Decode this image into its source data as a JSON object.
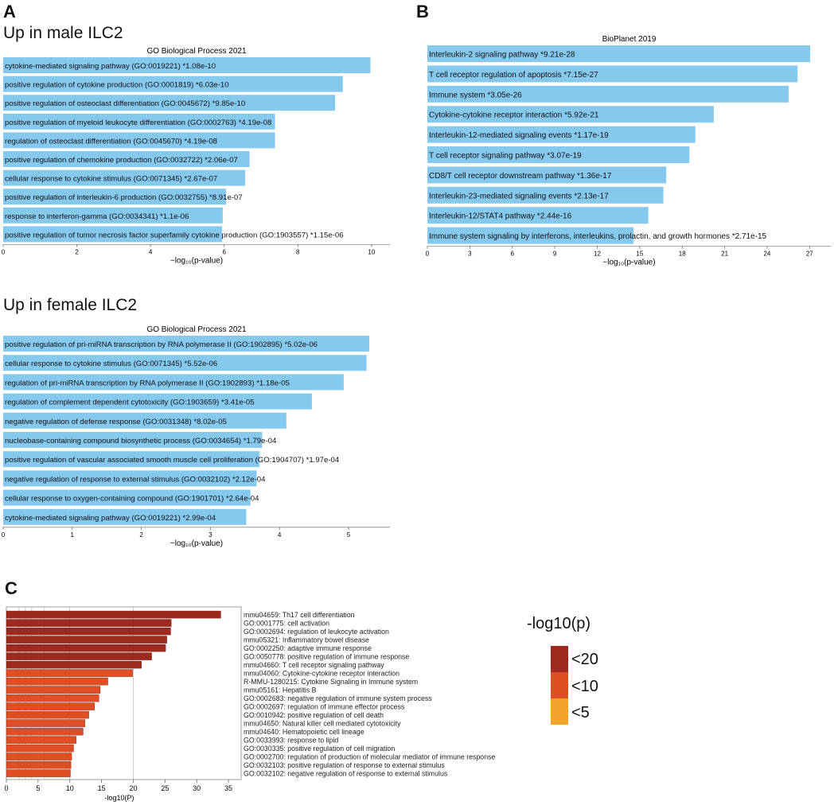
{
  "panels": {
    "a": "A",
    "b": "B",
    "c": "C"
  },
  "colors": {
    "bar_blue": "#85c9ef",
    "c20": "#9e2a1f",
    "c10": "#e04f24",
    "c5": "#f2a32a"
  },
  "chart_data": [
    {
      "id": "male",
      "type": "bar",
      "orientation": "horizontal",
      "subtitle": "Up in male ILC2",
      "title": "GO Biological Process 2021",
      "xlabel": "−log₁₀(p-value)",
      "xlim": [
        0,
        10.5
      ],
      "xticks": [
        0,
        2,
        4,
        6,
        8,
        10
      ],
      "categories": [
        "cytokine-mediated signaling pathway (GO:0019221)",
        "positive regulation of cytokine production (GO:0001819)",
        "positive regulation of osteoclast differentiation (GO:0045672)",
        "positive regulation of myeloid leukocyte differentiation (GO:0002763)",
        "regulation of osteoclast differentiation (GO:0045670)",
        "positive regulation of chemokine production (GO:0032722)",
        "cellular response to cytokine stimulus (GO:0071345)",
        "positive regulation of interleukin-6 production (GO:0032755)",
        "response to interferon-gamma (GO:0034341)",
        "positive regulation of tumor necrosis factor superfamily cytokine production (GO:1903557)"
      ],
      "pvalue_labels": [
        "*1.08e-10",
        "*6.03e-10",
        "*9.85e-10",
        "*4.19e-08",
        "*4.19e-08",
        "*2.06e-07",
        "*2.67e-07",
        "*8.91e-07",
        "*1.1e-06",
        "*1.15e-06"
      ],
      "values": [
        9.97,
        9.22,
        9.01,
        7.38,
        7.38,
        6.69,
        6.57,
        6.05,
        5.96,
        5.94
      ]
    },
    {
      "id": "bioplanet",
      "type": "bar",
      "orientation": "horizontal",
      "subtitle": "",
      "title": "BioPlanet 2019",
      "xlabel": "−log₁₀(p-value)",
      "xlim": [
        0,
        28.5
      ],
      "xticks": [
        0,
        3,
        6,
        9,
        12,
        15,
        18,
        21,
        24,
        27
      ],
      "categories": [
        "Interleukin-2 signaling pathway",
        "T cell receptor regulation of apoptosis",
        "Immune system",
        "Cytokine-cytokine receptor interaction",
        "Interleukin-12-mediated signaling events",
        "T cell receptor signaling pathway",
        "CD8/T cell receptor downstream pathway",
        "Interleukin-23-mediated signaling events",
        "Interleukin-12/STAT4 pathway",
        "Immune system signaling by interferons, interleukins, prolactin, and growth hormones"
      ],
      "pvalue_labels": [
        "*9.21e-28",
        "*7.15e-27",
        "*3.05e-26",
        "*5.92e-21",
        "*1.17e-19",
        "*3.07e-19",
        "*1.36e-17",
        "*2.13e-17",
        "*2.44e-16",
        "*2.71e-15"
      ],
      "values": [
        27.04,
        26.15,
        25.52,
        20.23,
        18.93,
        18.51,
        16.87,
        16.67,
        15.61,
        14.57
      ]
    },
    {
      "id": "female",
      "type": "bar",
      "orientation": "horizontal",
      "subtitle": "Up in female ILC2",
      "title": "GO Biological Process 2021",
      "xlabel": "−log₁₀(p-value)",
      "xlim": [
        0,
        5.6
      ],
      "xticks": [
        0,
        1,
        2,
        3,
        4,
        5
      ],
      "categories": [
        "positive regulation of pri-miRNA transcription by RNA polymerase II (GO:1902895)",
        "cellular response to cytokine stimulus (GO:0071345)",
        "regulation of pri-miRNA transcription by RNA polymerase II (GO:1902893)",
        "regulation of complement dependent cytotoxicity (GO:1903659)",
        "negative regulation of defense response (GO:0031348)",
        "nucleobase-containing compound biosynthetic process (GO:0034654)",
        "positive regulation of vascular associated smooth muscle cell proliferation (GO:1904707)",
        "negative regulation of response to external stimulus (GO:0032102)",
        "cellular response to oxygen-containing compound (GO:1901701)",
        "cytokine-mediated signaling pathway (GO:0019221)"
      ],
      "pvalue_labels": [
        "*5.02e-06",
        "*5.52e-06",
        "*1.18e-05",
        "*3.41e-05",
        "*8.02e-05",
        "*1.79e-04",
        "*1.97e-04",
        "*2.12e-04",
        "*2.64e-04",
        "*2.99e-04"
      ],
      "values": [
        5.3,
        5.26,
        4.93,
        4.47,
        4.1,
        3.75,
        3.71,
        3.67,
        3.58,
        3.52
      ]
    },
    {
      "id": "metascape",
      "type": "bar",
      "orientation": "horizontal",
      "title": "",
      "xlabel": "-log10(P)",
      "xlim": [
        0,
        37
      ],
      "xticks": [
        0,
        5,
        10,
        15,
        20,
        25,
        30,
        35
      ],
      "gridlines": [
        2,
        3,
        4,
        6,
        10,
        20
      ],
      "categories": [
        "mmu04659: Th17 cell differentiation",
        "GO:0001775: cell activation",
        "GO:0002694: regulation of leukocyte activation",
        "mmu05321: Inflammatory bowel disease",
        "GO:0002250: adaptive immune response",
        "GO:0050778: positive regulation of immune response",
        "mmu04660: T cell receptor signaling pathway",
        "mmu04060: Cytokine-cytokine receptor interaction",
        "R-MMU-1280215: Cytokine Signaling in Immune system",
        "mmu05161: Hepatitis B",
        "GO:0002683: negative regulation of immune system process",
        "GO:0002697: regulation of immune effector process",
        "GO:0010942: positive regulation of cell death",
        "mmu04650: Natural killer cell mediated cytotoxicity",
        "mmu04640: Hematopoietic cell lineage",
        "GO:0033993: response to lipid",
        "GO:0030335: positive regulation of cell migration",
        "GO:0002700: regulation of production of molecular mediator of immune response",
        "GO:0032103: positive regulation of response to external stimulus",
        "GO:0032102: negative regulation of response to external stimulus"
      ],
      "values": [
        33.8,
        26.0,
        25.9,
        25.3,
        25.1,
        22.9,
        21.3,
        19.9,
        16.0,
        14.8,
        14.6,
        13.9,
        13.0,
        12.4,
        12.1,
        11.0,
        10.6,
        10.3,
        10.2,
        10.1
      ],
      "legend": {
        "title": "-log10(p)",
        "entries": [
          {
            "label": "<20",
            "color": "#9e2a1f"
          },
          {
            "label": "<10",
            "color": "#e04f24"
          },
          {
            "label": "<5",
            "color": "#f2a32a"
          }
        ]
      }
    }
  ]
}
